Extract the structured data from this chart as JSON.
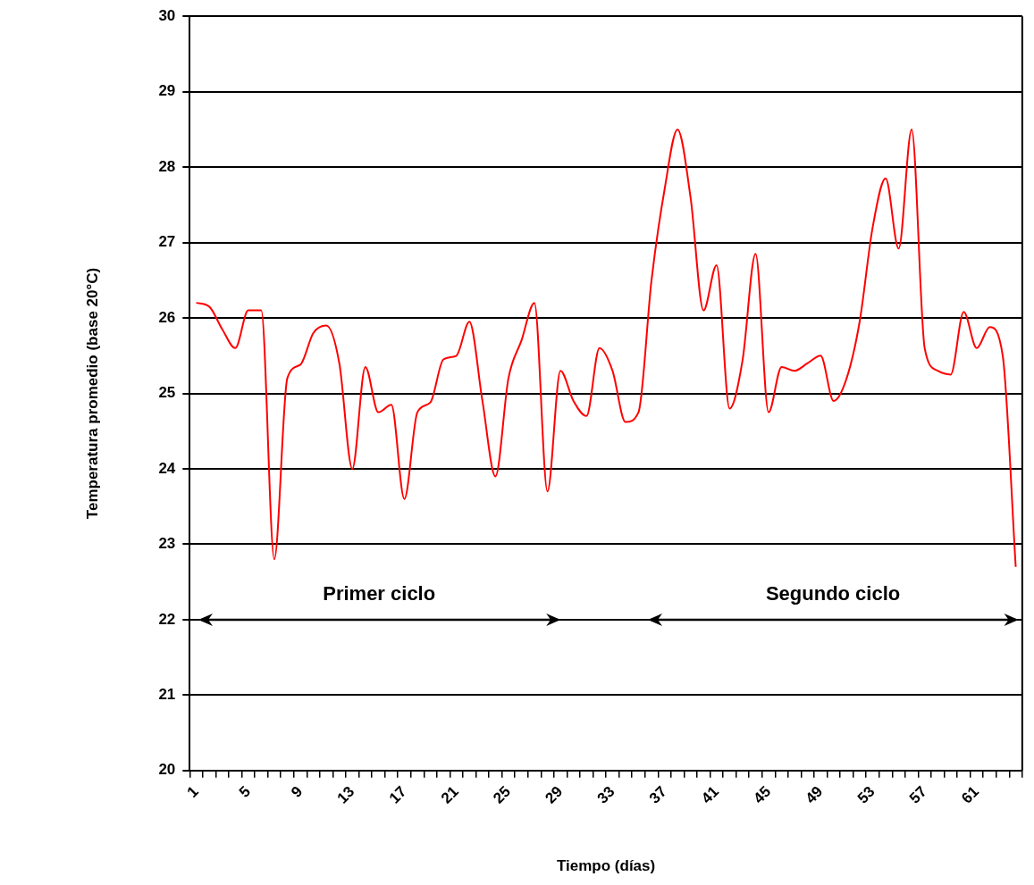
{
  "chart_data": {
    "type": "line",
    "xlabel": "Tiempo (días)",
    "ylabel": "Temperatura promedio (base 20°C)",
    "categories": [
      "1",
      null,
      null,
      null,
      "5",
      null,
      null,
      null,
      "9",
      null,
      null,
      null,
      "13",
      null,
      null,
      null,
      "17",
      null,
      null,
      null,
      "21",
      null,
      null,
      null,
      "25",
      null,
      null,
      null,
      "29",
      null,
      null,
      null,
      "33",
      null,
      null,
      null,
      "37",
      null,
      null,
      null,
      "41",
      null,
      null,
      null,
      "45",
      null,
      null,
      null,
      "49",
      null,
      null,
      null,
      "53",
      null,
      null,
      null,
      "57",
      null,
      null,
      null,
      "61",
      null,
      null,
      null
    ],
    "series": [
      {
        "color": "#ff0000",
        "values": [
          26.2,
          26.15,
          25.85,
          25.6,
          26.1,
          26.1,
          22.8,
          25.2,
          25.38,
          25.8,
          25.9,
          25.4,
          24.0,
          25.35,
          24.75,
          24.85,
          23.6,
          24.75,
          24.88,
          25.45,
          25.5,
          25.95,
          24.9,
          23.9,
          25.2,
          25.7,
          26.2,
          23.7,
          25.3,
          24.9,
          24.7,
          25.6,
          25.3,
          24.62,
          24.75,
          26.5,
          27.7,
          28.5,
          27.6,
          26.1,
          26.7,
          24.8,
          25.44,
          26.85,
          24.75,
          25.35,
          25.3,
          25.4,
          25.5,
          24.9,
          25.2,
          25.95,
          27.2,
          27.85,
          26.92,
          28.5,
          25.6,
          25.3,
          25.25,
          26.08,
          25.6,
          25.88,
          25.5,
          22.7
        ]
      }
    ],
    "ylim": [
      20,
      30
    ],
    "yticks": [
      20,
      21,
      22,
      23,
      24,
      25,
      26,
      27,
      28,
      29,
      30
    ],
    "grid": "y",
    "legend": false,
    "marker": "none",
    "line_style": "solid",
    "annotations": [
      "Primer ciclo",
      "Segundo ciclo"
    ]
  }
}
